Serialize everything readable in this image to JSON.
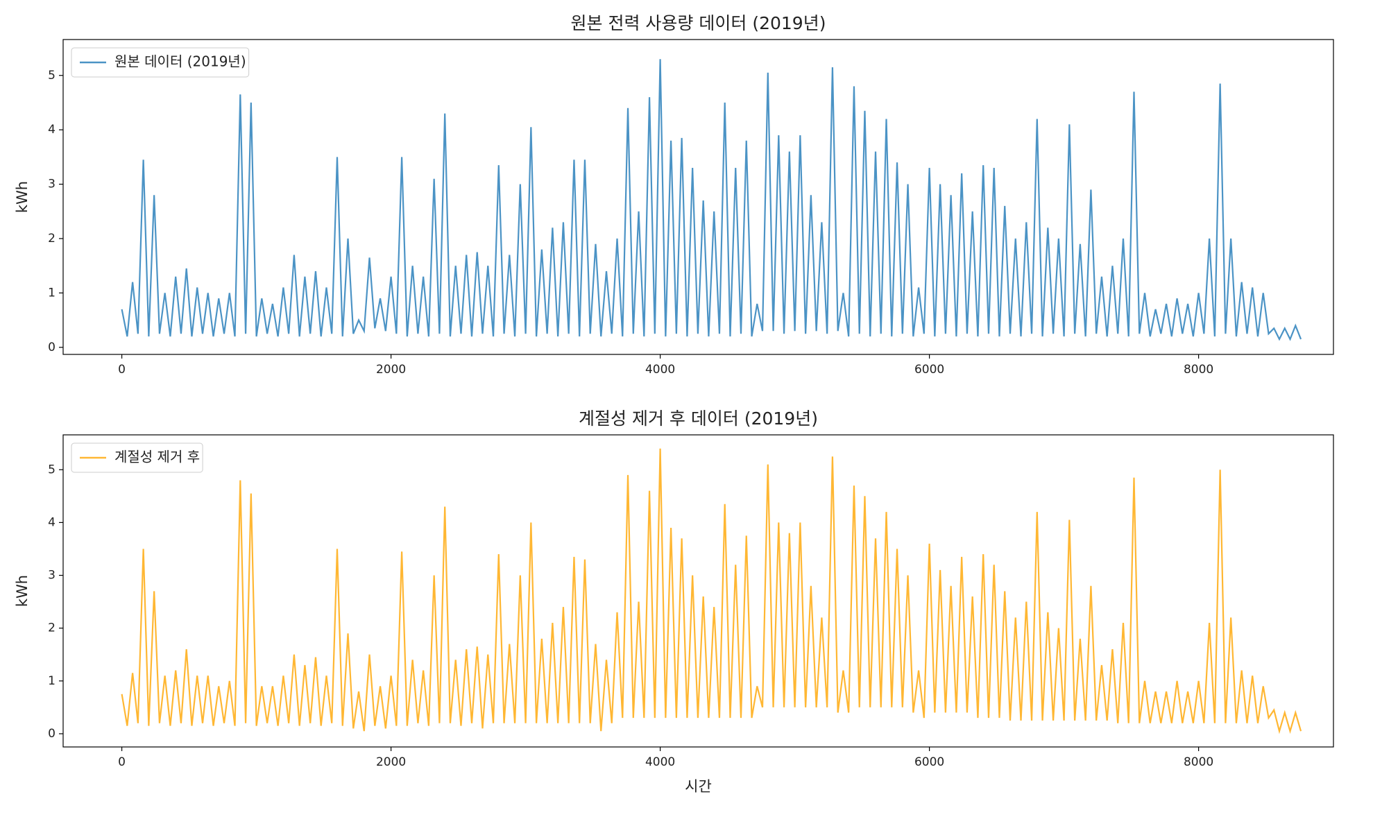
{
  "chart_data": [
    {
      "type": "line",
      "title": "원본 전력 사용량 데이터 (2019년)",
      "y_label": "kWh",
      "legend": "upper left",
      "xlim": [
        -436,
        9002
      ],
      "ylim": [
        -0.13,
        5.66
      ],
      "xticks": [
        0,
        2000,
        4000,
        6000,
        8000
      ],
      "yticks": [
        0,
        1,
        2,
        3,
        4,
        5
      ],
      "x": [
        0,
        40,
        80,
        120,
        160,
        200,
        240,
        280,
        320,
        360,
        400,
        440,
        480,
        520,
        560,
        600,
        640,
        680,
        720,
        760,
        800,
        840,
        880,
        920,
        960,
        1000,
        1040,
        1080,
        1120,
        1160,
        1200,
        1240,
        1280,
        1320,
        1360,
        1400,
        1440,
        1480,
        1520,
        1560,
        1600,
        1640,
        1680,
        1720,
        1760,
        1800,
        1840,
        1880,
        1920,
        1960,
        2000,
        2040,
        2080,
        2120,
        2160,
        2200,
        2240,
        2280,
        2320,
        2360,
        2400,
        2440,
        2480,
        2520,
        2560,
        2600,
        2640,
        2680,
        2720,
        2760,
        2800,
        2840,
        2880,
        2920,
        2960,
        3000,
        3040,
        3080,
        3120,
        3160,
        3200,
        3240,
        3280,
        3320,
        3360,
        3400,
        3440,
        3480,
        3520,
        3560,
        3600,
        3640,
        3680,
        3720,
        3760,
        3800,
        3840,
        3880,
        3920,
        3960,
        4000,
        4040,
        4080,
        4120,
        4160,
        4200,
        4240,
        4280,
        4320,
        4360,
        4400,
        4440,
        4480,
        4520,
        4560,
        4600,
        4640,
        4680,
        4720,
        4760,
        4800,
        4840,
        4880,
        4920,
        4960,
        5000,
        5040,
        5080,
        5120,
        5160,
        5200,
        5240,
        5280,
        5320,
        5360,
        5400,
        5440,
        5480,
        5520,
        5560,
        5600,
        5640,
        5680,
        5720,
        5760,
        5800,
        5840,
        5880,
        5920,
        5960,
        6000,
        6040,
        6080,
        6120,
        6160,
        6200,
        6240,
        6280,
        6320,
        6360,
        6400,
        6440,
        6480,
        6520,
        6560,
        6600,
        6640,
        6680,
        6720,
        6760,
        6800,
        6840,
        6880,
        6920,
        6960,
        7000,
        7040,
        7080,
        7120,
        7160,
        7200,
        7240,
        7280,
        7320,
        7360,
        7400,
        7440,
        7480,
        7520,
        7560,
        7600,
        7640,
        7680,
        7720,
        7760,
        7800,
        7840,
        7880,
        7920,
        7960,
        8000,
        8040,
        8080,
        8120,
        8160,
        8200,
        8240,
        8280,
        8320,
        8360,
        8400,
        8440,
        8480,
        8520,
        8560,
        8600,
        8640,
        8680,
        8720,
        8760
      ],
      "series": [
        {
          "name": "원본 데이터 (2019년)",
          "color": "#4b93c5",
          "values": [
            0.7,
            0.2,
            1.2,
            0.25,
            3.45,
            0.2,
            2.8,
            0.25,
            1.0,
            0.2,
            1.3,
            0.25,
            1.45,
            0.2,
            1.1,
            0.25,
            1.0,
            0.2,
            0.9,
            0.25,
            1.0,
            0.2,
            4.65,
            0.25,
            4.5,
            0.2,
            0.9,
            0.25,
            0.8,
            0.2,
            1.1,
            0.25,
            1.7,
            0.2,
            1.3,
            0.25,
            1.4,
            0.2,
            1.1,
            0.25,
            3.5,
            0.2,
            2.0,
            0.25,
            0.5,
            0.3,
            1.65,
            0.35,
            0.9,
            0.3,
            1.3,
            0.25,
            3.5,
            0.2,
            1.5,
            0.25,
            1.3,
            0.2,
            3.1,
            0.25,
            4.3,
            0.2,
            1.5,
            0.25,
            1.7,
            0.2,
            1.75,
            0.25,
            1.5,
            0.2,
            3.35,
            0.25,
            1.7,
            0.2,
            3.0,
            0.25,
            4.05,
            0.2,
            1.8,
            0.25,
            2.2,
            0.2,
            2.3,
            0.25,
            3.45,
            0.2,
            3.45,
            0.25,
            1.9,
            0.2,
            1.4,
            0.25,
            2.0,
            0.2,
            4.4,
            0.25,
            2.5,
            0.2,
            4.6,
            0.25,
            5.3,
            0.2,
            3.8,
            0.25,
            3.85,
            0.2,
            3.3,
            0.25,
            2.7,
            0.2,
            2.5,
            0.25,
            4.5,
            0.2,
            3.3,
            0.25,
            3.8,
            0.2,
            0.8,
            0.3,
            5.05,
            0.3,
            3.9,
            0.25,
            3.6,
            0.3,
            3.9,
            0.25,
            2.8,
            0.3,
            2.3,
            0.25,
            5.15,
            0.3,
            1.0,
            0.2,
            4.8,
            0.25,
            4.35,
            0.2,
            3.6,
            0.25,
            4.2,
            0.2,
            3.4,
            0.25,
            3.0,
            0.2,
            1.1,
            0.25,
            3.3,
            0.2,
            3.0,
            0.25,
            2.8,
            0.2,
            3.2,
            0.25,
            2.5,
            0.2,
            3.35,
            0.25,
            3.3,
            0.2,
            2.6,
            0.25,
            2.0,
            0.2,
            2.3,
            0.25,
            4.2,
            0.2,
            2.2,
            0.25,
            2.0,
            0.2,
            4.1,
            0.25,
            1.9,
            0.2,
            2.9,
            0.25,
            1.3,
            0.2,
            1.5,
            0.25,
            2.0,
            0.2,
            4.7,
            0.25,
            1.0,
            0.2,
            0.7,
            0.25,
            0.8,
            0.2,
            0.9,
            0.25,
            0.8,
            0.2,
            1.0,
            0.25,
            2.0,
            0.2,
            4.85,
            0.25,
            2.0,
            0.2,
            1.2,
            0.25,
            1.1,
            0.2,
            1.0,
            0.25,
            0.35,
            0.15,
            0.35,
            0.15,
            0.4,
            0.15
          ]
        }
      ]
    },
    {
      "type": "line",
      "title": "계절성 제거 후 데이터 (2019년)",
      "x_label": "시간",
      "y_label": "kWh",
      "legend": "upper left",
      "xlim": [
        -436,
        9002
      ],
      "ylim": [
        -0.25,
        5.66
      ],
      "xticks": [
        0,
        2000,
        4000,
        6000,
        8000
      ],
      "yticks": [
        0,
        1,
        2,
        3,
        4,
        5
      ],
      "x": [
        0,
        40,
        80,
        120,
        160,
        200,
        240,
        280,
        320,
        360,
        400,
        440,
        480,
        520,
        560,
        600,
        640,
        680,
        720,
        760,
        800,
        840,
        880,
        920,
        960,
        1000,
        1040,
        1080,
        1120,
        1160,
        1200,
        1240,
        1280,
        1320,
        1360,
        1400,
        1440,
        1480,
        1520,
        1560,
        1600,
        1640,
        1680,
        1720,
        1760,
        1800,
        1840,
        1880,
        1920,
        1960,
        2000,
        2040,
        2080,
        2120,
        2160,
        2200,
        2240,
        2280,
        2320,
        2360,
        2400,
        2440,
        2480,
        2520,
        2560,
        2600,
        2640,
        2680,
        2720,
        2760,
        2800,
        2840,
        2880,
        2920,
        2960,
        3000,
        3040,
        3080,
        3120,
        3160,
        3200,
        3240,
        3280,
        3320,
        3360,
        3400,
        3440,
        3480,
        3520,
        3560,
        3600,
        3640,
        3680,
        3720,
        3760,
        3800,
        3840,
        3880,
        3920,
        3960,
        4000,
        4040,
        4080,
        4120,
        4160,
        4200,
        4240,
        4280,
        4320,
        4360,
        4400,
        4440,
        4480,
        4520,
        4560,
        4600,
        4640,
        4680,
        4720,
        4760,
        4800,
        4840,
        4880,
        4920,
        4960,
        5000,
        5040,
        5080,
        5120,
        5160,
        5200,
        5240,
        5280,
        5320,
        5360,
        5400,
        5440,
        5480,
        5520,
        5560,
        5600,
        5640,
        5680,
        5720,
        5760,
        5800,
        5840,
        5880,
        5920,
        5960,
        6000,
        6040,
        6080,
        6120,
        6160,
        6200,
        6240,
        6280,
        6320,
        6360,
        6400,
        6440,
        6480,
        6520,
        6560,
        6600,
        6640,
        6680,
        6720,
        6760,
        6800,
        6840,
        6880,
        6920,
        6960,
        7000,
        7040,
        7080,
        7120,
        7160,
        7200,
        7240,
        7280,
        7320,
        7360,
        7400,
        7440,
        7480,
        7520,
        7560,
        7600,
        7640,
        7680,
        7720,
        7760,
        7800,
        7840,
        7880,
        7920,
        7960,
        8000,
        8040,
        8080,
        8120,
        8160,
        8200,
        8240,
        8280,
        8320,
        8360,
        8400,
        8440,
        8480,
        8520,
        8560,
        8600,
        8640,
        8680,
        8720,
        8760
      ],
      "series": [
        {
          "name": "계절성 제거 후",
          "color": "#ffb733",
          "values": [
            0.75,
            0.15,
            1.15,
            0.2,
            3.5,
            0.15,
            2.7,
            0.2,
            1.1,
            0.15,
            1.2,
            0.2,
            1.6,
            0.15,
            1.1,
            0.2,
            1.1,
            0.15,
            0.9,
            0.2,
            1.0,
            0.15,
            4.8,
            0.2,
            4.55,
            0.15,
            0.9,
            0.2,
            0.9,
            0.15,
            1.1,
            0.2,
            1.5,
            0.15,
            1.3,
            0.2,
            1.45,
            0.15,
            1.1,
            0.2,
            3.5,
            0.15,
            1.9,
            0.1,
            0.8,
            0.05,
            1.5,
            0.15,
            0.9,
            0.1,
            1.1,
            0.15,
            3.45,
            0.15,
            1.4,
            0.2,
            1.2,
            0.15,
            3.0,
            0.2,
            4.3,
            0.2,
            1.4,
            0.15,
            1.6,
            0.2,
            1.65,
            0.1,
            1.5,
            0.2,
            3.4,
            0.2,
            1.7,
            0.2,
            3.0,
            0.2,
            4.0,
            0.2,
            1.8,
            0.2,
            2.1,
            0.2,
            2.4,
            0.2,
            3.35,
            0.2,
            3.3,
            0.2,
            1.7,
            0.05,
            1.4,
            0.2,
            2.3,
            0.3,
            4.9,
            0.3,
            2.5,
            0.3,
            4.6,
            0.3,
            5.4,
            0.3,
            3.9,
            0.3,
            3.7,
            0.3,
            3.0,
            0.3,
            2.6,
            0.3,
            2.4,
            0.3,
            4.35,
            0.3,
            3.2,
            0.3,
            3.75,
            0.3,
            0.9,
            0.5,
            5.1,
            0.5,
            4.0,
            0.5,
            3.8,
            0.5,
            4.0,
            0.5,
            2.8,
            0.5,
            2.2,
            0.5,
            5.25,
            0.4,
            1.2,
            0.4,
            4.7,
            0.5,
            4.5,
            0.5,
            3.7,
            0.5,
            4.2,
            0.5,
            3.5,
            0.5,
            3.0,
            0.4,
            1.2,
            0.3,
            3.6,
            0.4,
            3.1,
            0.4,
            2.8,
            0.4,
            3.35,
            0.4,
            2.6,
            0.3,
            3.4,
            0.3,
            3.2,
            0.3,
            2.7,
            0.25,
            2.2,
            0.25,
            2.5,
            0.25,
            4.2,
            0.25,
            2.3,
            0.25,
            2.0,
            0.25,
            4.05,
            0.25,
            1.8,
            0.25,
            2.8,
            0.25,
            1.3,
            0.25,
            1.6,
            0.2,
            2.1,
            0.2,
            4.85,
            0.2,
            1.0,
            0.2,
            0.8,
            0.2,
            0.8,
            0.2,
            1.0,
            0.2,
            0.8,
            0.2,
            1.0,
            0.2,
            2.1,
            0.2,
            5.0,
            0.2,
            2.2,
            0.2,
            1.2,
            0.2,
            1.1,
            0.2,
            0.9,
            0.3,
            0.45,
            0.05,
            0.4,
            0.05,
            0.4,
            0.05
          ]
        }
      ]
    }
  ]
}
